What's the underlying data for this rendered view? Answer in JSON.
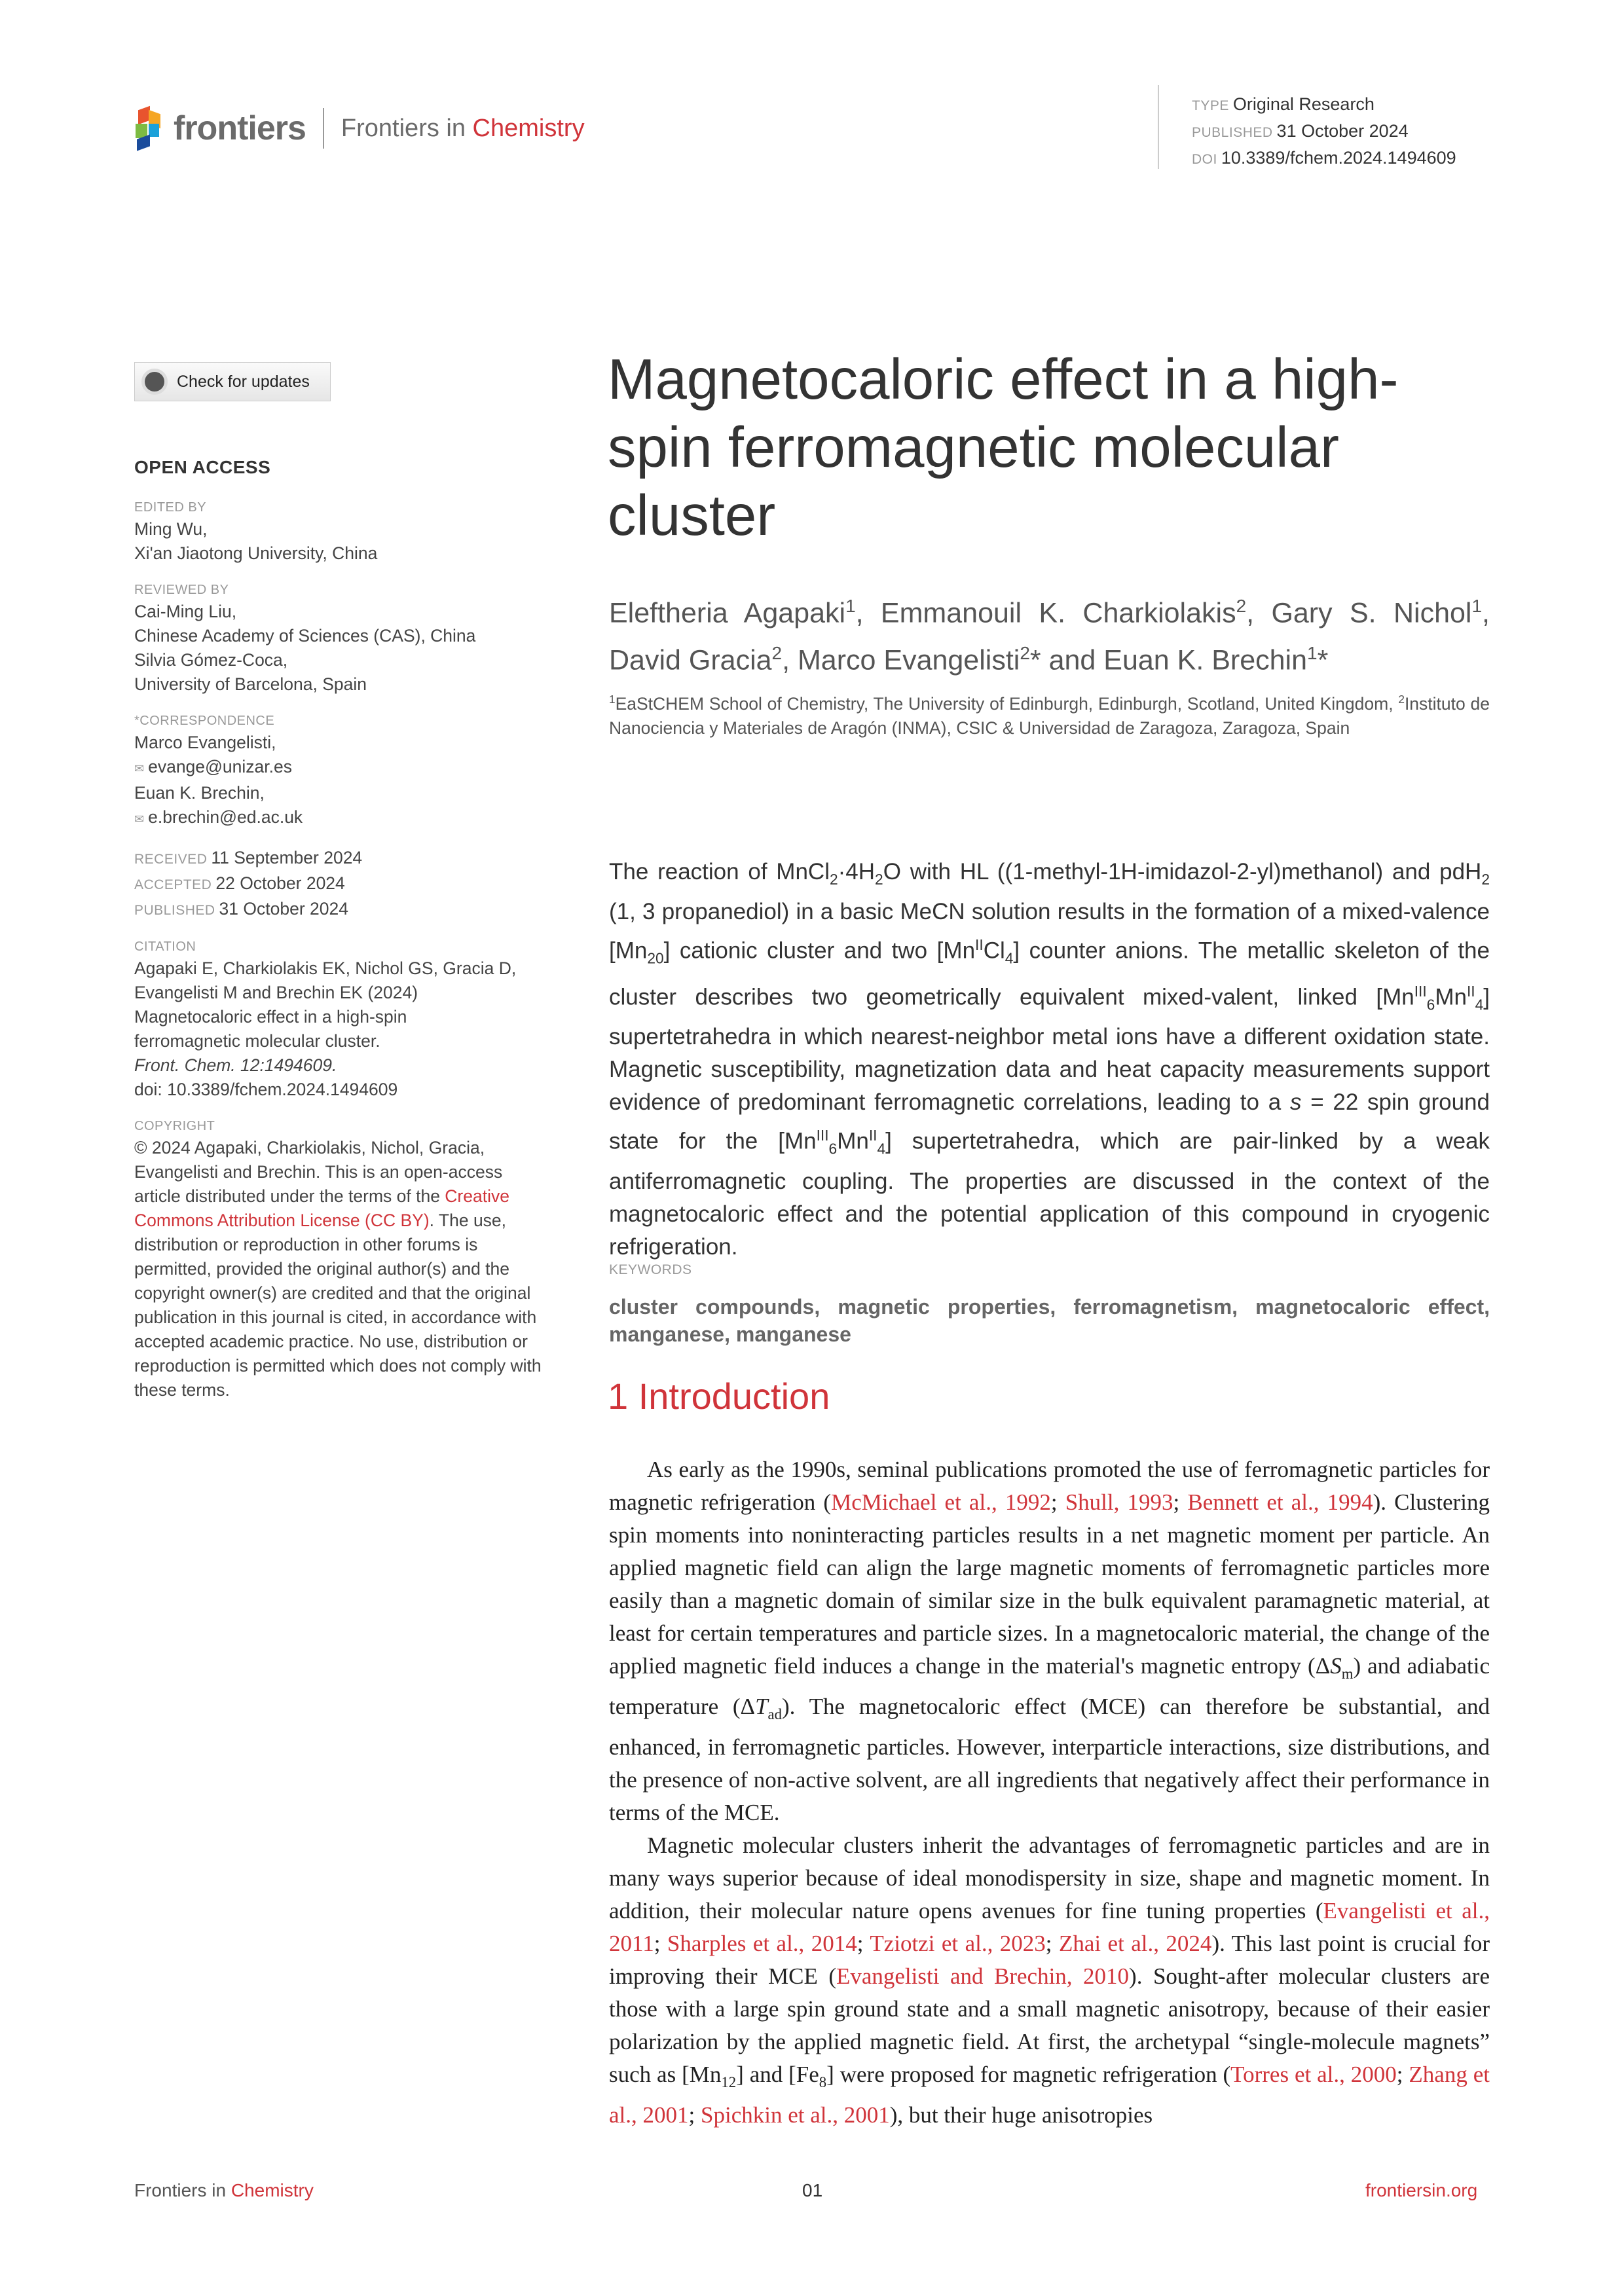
{
  "header": {
    "logo_word": "frontiers",
    "journal_prefix": "Frontiers in ",
    "journal_name": "Chemistry",
    "type_label": "TYPE",
    "type": "Original Research",
    "published_label": "PUBLISHED",
    "published": "31 October 2024",
    "doi_label": "DOI",
    "doi": "10.3389/fchem.2024.1494609"
  },
  "check_updates": "Check for updates",
  "sidebar": {
    "open_access": "OPEN ACCESS",
    "edited_label": "EDITED BY",
    "edited": [
      "Ming Wu,",
      "Xi'an Jiaotong University, China"
    ],
    "reviewed_label": "REVIEWED BY",
    "reviewed": [
      "Cai-Ming Liu,",
      "Chinese Academy of Sciences (CAS), China",
      "Silvia Gómez-Coca,",
      "University of Barcelona, Spain"
    ],
    "corr_label": "*CORRESPONDENCE",
    "corr": [
      "Marco Evangelisti,",
      "evange@unizar.es",
      "Euan K. Brechin,",
      "e.brechin@ed.ac.uk"
    ],
    "received_label": "RECEIVED",
    "received": "11 September 2024",
    "accepted_label": "ACCEPTED",
    "accepted": "22 October 2024",
    "published_label": "PUBLISHED",
    "published": "31 October 2024",
    "citation_label": "CITATION",
    "citation": [
      "Agapaki E, Charkiolakis EK, Nichol GS, Gracia D,",
      "Evangelisti M and Brechin EK (2024)",
      "Magnetocaloric effect in a high-spin",
      "ferromagnetic molecular cluster.",
      "Front. Chem. 12:1494609.",
      "doi: 10.3389/fchem.2024.1494609"
    ],
    "copyright_label": "COPYRIGHT",
    "copyright_a": "© 2024 Agapaki, Charkiolakis, Nichol, Gracia, Evangelisti and Brechin. This is an open-access article distributed under the terms of the ",
    "copyright_link": "Creative Commons Attribution License (CC BY)",
    "copyright_b": ". The use, distribution or reproduction in other forums is permitted, provided the original author(s) and the copyright owner(s) are credited and that the original publication in this journal is cited, in accordance with accepted academic practice. No use, distribution or reproduction is permitted which does not comply with these terms."
  },
  "title": "Magnetocaloric effect in a high-spin ferromagnetic molecular cluster",
  "authors": [
    {
      "t": "Eleftheria Agapaki"
    },
    {
      "t": "1",
      "s": "sup"
    },
    {
      "t": ", Emmanouil K. Charkiolakis"
    },
    {
      "t": "2",
      "s": "sup"
    },
    {
      "t": ", Gary S. Nichol"
    },
    {
      "t": "1",
      "s": "sup"
    },
    {
      "t": ", David Gracia"
    },
    {
      "t": "2",
      "s": "sup"
    },
    {
      "t": ", Marco Evangelisti"
    },
    {
      "t": "2",
      "s": "sup"
    },
    {
      "t": "* and Euan K. Brechin"
    },
    {
      "t": "1",
      "s": "sup"
    },
    {
      "t": "*"
    }
  ],
  "affiliations": [
    {
      "t": "1",
      "s": "sup"
    },
    {
      "t": "EaStCHEM School of Chemistry, The University of Edinburgh, Edinburgh, Scotland, United Kingdom, "
    },
    {
      "t": "2",
      "s": "sup"
    },
    {
      "t": "Instituto de Nanociencia y Materiales de Aragón (INMA), CSIC & Universidad de Zaragoza, Zaragoza, Spain"
    }
  ],
  "abstract": [
    {
      "t": "The reaction of MnCl"
    },
    {
      "t": "2",
      "s": "sub"
    },
    {
      "t": "·4H"
    },
    {
      "t": "2",
      "s": "sub"
    },
    {
      "t": "O with HL ((1-methyl-1H-imidazol-2-yl)methanol) and pdH"
    },
    {
      "t": "2",
      "s": "sub"
    },
    {
      "t": " (1, 3 propanediol) in a basic MeCN solution results in the formation of a mixed-valence [Mn"
    },
    {
      "t": "20",
      "s": "sub"
    },
    {
      "t": "] cationic cluster and two [Mn"
    },
    {
      "t": "II",
      "s": "sup"
    },
    {
      "t": "Cl"
    },
    {
      "t": "4",
      "s": "sub"
    },
    {
      "t": "] counter anions. The metallic skeleton of the cluster describes two geometrically equivalent mixed-valent, linked [Mn"
    },
    {
      "t": "III",
      "s": "sup"
    },
    {
      "t": "6",
      "s": "sub"
    },
    {
      "t": "Mn"
    },
    {
      "t": "II",
      "s": "sup"
    },
    {
      "t": "4",
      "s": "sub"
    },
    {
      "t": "] supertetrahedra in which nearest-neighbor metal ions have a different oxidation state. Magnetic susceptibility, magnetization data and heat capacity measurements support evidence of predominant ferromagnetic correlations, leading to a "
    },
    {
      "t": "s",
      "s": "i"
    },
    {
      "t": " = 22 spin ground state for the [Mn"
    },
    {
      "t": "III",
      "s": "sup"
    },
    {
      "t": "6",
      "s": "sub"
    },
    {
      "t": "Mn"
    },
    {
      "t": "II",
      "s": "sup"
    },
    {
      "t": "4",
      "s": "sub"
    },
    {
      "t": "] supertetrahedra, which are pair-linked by a weak antiferromagnetic coupling. The properties are discussed in the context of the magnetocaloric effect and the potential application of this compound in cryogenic refrigeration."
    }
  ],
  "keywords_label": "KEYWORDS",
  "keywords": "cluster compounds, magnetic properties, ferromagnetism, magnetocaloric effect, manganese, manganese",
  "intro_heading": "1 Introduction",
  "body": [
    [
      {
        "t": "As early as the 1990s, seminal publications promoted the use of ferromagnetic particles for magnetic refrigeration ("
      },
      {
        "t": "McMichael et al., 1992",
        "s": "link"
      },
      {
        "t": "; "
      },
      {
        "t": "Shull, 1993",
        "s": "link"
      },
      {
        "t": "; "
      },
      {
        "t": "Bennett et al., 1994",
        "s": "link"
      },
      {
        "t": "). Clustering spin moments into noninteracting particles results in a net magnetic moment per particle. An applied magnetic field can align the large magnetic moments of ferromagnetic particles more easily than a magnetic domain of similar size in the bulk equivalent paramagnetic material, at least for certain temperatures and particle sizes. In a magnetocaloric material, the change of the applied magnetic field induces a change in the material's magnetic entropy (Δ"
      },
      {
        "t": "S",
        "s": "i"
      },
      {
        "t": "m",
        "s": "sub"
      },
      {
        "t": ") and adiabatic temperature (Δ"
      },
      {
        "t": "T",
        "s": "i"
      },
      {
        "t": "ad",
        "s": "sub"
      },
      {
        "t": "). The magnetocaloric effect (MCE) can therefore be substantial, and enhanced, in ferromagnetic particles. However, interparticle interactions, size distributions, and the presence of non-active solvent, are all ingredients that negatively affect their performance in terms of the MCE."
      }
    ],
    [
      {
        "t": "Magnetic molecular clusters inherit the advantages of ferromagnetic particles and are in many ways superior because of ideal monodispersity in size, shape and magnetic moment. In addition, their molecular nature opens avenues for fine tuning properties ("
      },
      {
        "t": "Evangelisti et al., 2011",
        "s": "link"
      },
      {
        "t": "; "
      },
      {
        "t": "Sharples et al., 2014",
        "s": "link"
      },
      {
        "t": "; "
      },
      {
        "t": "Tziotzi et al., 2023",
        "s": "link"
      },
      {
        "t": "; "
      },
      {
        "t": "Zhai et al., 2024",
        "s": "link"
      },
      {
        "t": "). This last point is crucial for improving their MCE ("
      },
      {
        "t": "Evangelisti and Brechin, 2010",
        "s": "link"
      },
      {
        "t": "). Sought-after molecular clusters are those with a large spin ground state and a small magnetic anisotropy, because of their easier polarization by the applied magnetic field. At first, the archetypal “single-molecule magnets” such as [Mn"
      },
      {
        "t": "12",
        "s": "sub"
      },
      {
        "t": "] and [Fe"
      },
      {
        "t": "8",
        "s": "sub"
      },
      {
        "t": "] were proposed for magnetic refrigeration ("
      },
      {
        "t": "Torres et al., 2000",
        "s": "link"
      },
      {
        "t": "; "
      },
      {
        "t": "Zhang et al., 2001",
        "s": "link"
      },
      {
        "t": "; "
      },
      {
        "t": "Spichkin et al., 2001",
        "s": "link"
      },
      {
        "t": "), but their huge anisotropies"
      }
    ]
  ],
  "footer": {
    "left_prefix": "Frontiers in ",
    "left_name": "Chemistry",
    "page": "01",
    "right": "frontiersin.org"
  },
  "colors": {
    "accent": "#d0343a",
    "text": "#333333"
  }
}
